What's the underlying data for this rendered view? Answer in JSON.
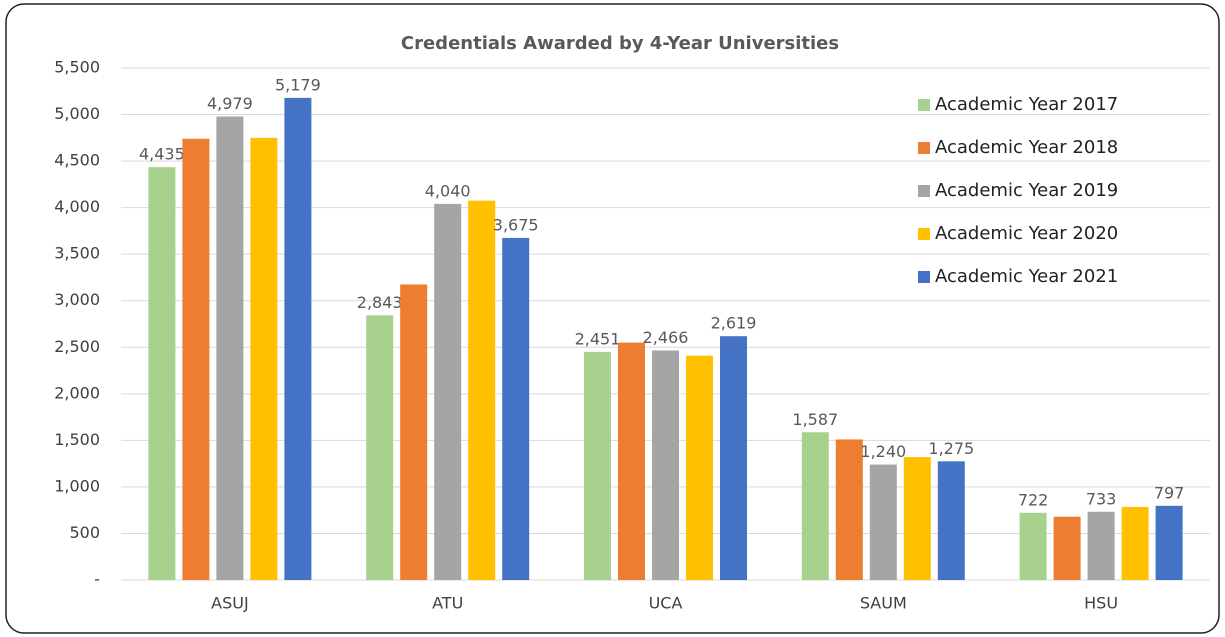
{
  "chart_data": {
    "type": "bar",
    "title": "Credentials Awarded by 4-Year Universities",
    "categories": [
      "ASUJ",
      "ATU",
      "UCA",
      "SAUM",
      "HSU"
    ],
    "series": [
      {
        "name": "Academic Year 2017",
        "color": "#a9d18e",
        "values": [
          4435,
          2843,
          2451,
          1587,
          722
        ],
        "value_labels": [
          "4,435",
          "2,843",
          "2,451",
          "1,587",
          "722"
        ]
      },
      {
        "name": "Academic Year 2018",
        "color": "#ed7d31",
        "values": [
          4740,
          3175,
          2550,
          1510,
          680
        ],
        "value_labels": [
          null,
          null,
          null,
          null,
          null
        ]
      },
      {
        "name": "Academic Year 2019",
        "color": "#a5a5a5",
        "values": [
          4979,
          4040,
          2466,
          1240,
          733
        ],
        "value_labels": [
          "4,979",
          "4,040",
          "2,466",
          "1,240",
          "733"
        ]
      },
      {
        "name": "Academic Year 2020",
        "color": "#ffc000",
        "values": [
          4750,
          4075,
          2410,
          1320,
          785
        ],
        "value_labels": [
          null,
          null,
          null,
          null,
          null
        ]
      },
      {
        "name": "Academic Year 2021",
        "color": "#4472c4",
        "values": [
          5179,
          3675,
          2619,
          1275,
          797
        ],
        "value_labels": [
          "5,179",
          "3,675",
          "2,619",
          "1,275",
          "797"
        ]
      }
    ],
    "ylim": [
      0,
      5500
    ],
    "yticks": [
      {
        "value": 0,
        "label": "-"
      },
      500,
      {
        "value": 1000,
        "label": "1,000"
      },
      {
        "value": 1500,
        "label": "1,500"
      },
      {
        "value": 2000,
        "label": "2,000"
      },
      {
        "value": 2500,
        "label": "2,500"
      },
      {
        "value": 3000,
        "label": "3,000"
      },
      {
        "value": 3500,
        "label": "3,500"
      },
      {
        "value": 4000,
        "label": "4,000"
      },
      {
        "value": 4500,
        "label": "4,500"
      },
      {
        "value": 5000,
        "label": "5,000"
      },
      {
        "value": 5500,
        "label": "5,500"
      }
    ],
    "grid": true,
    "legend": "top-right"
  }
}
